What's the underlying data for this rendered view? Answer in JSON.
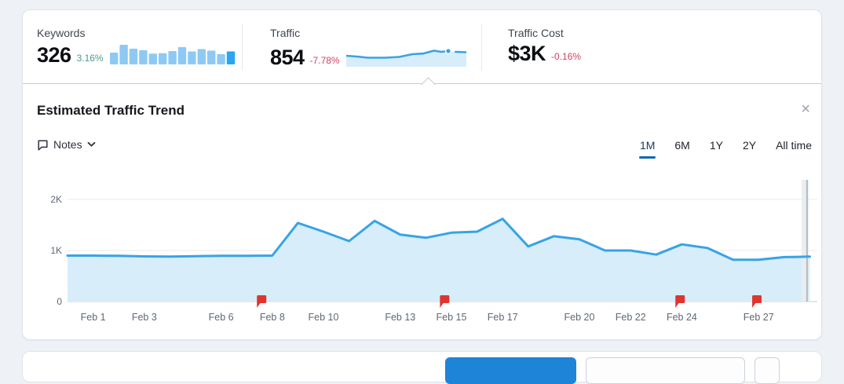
{
  "metrics": {
    "keywords": {
      "label": "Keywords",
      "value": "326",
      "change": "3.16%",
      "change_direction": "up"
    },
    "traffic": {
      "label": "Traffic",
      "value": "854",
      "change": "-7.78%",
      "change_direction": "down"
    },
    "traffic_cost": {
      "label": "Traffic Cost",
      "value": "$3K",
      "change": "-0.16%",
      "change_direction": "down"
    }
  },
  "trend_panel": {
    "title": "Estimated Traffic Trend",
    "notes_label": "Notes",
    "close_icon": "×",
    "range_tabs": [
      {
        "label": "1M",
        "active": true
      },
      {
        "label": "6M",
        "active": false
      },
      {
        "label": "1Y",
        "active": false
      },
      {
        "label": "2Y",
        "active": false
      },
      {
        "label": "All time",
        "active": false
      }
    ]
  },
  "chart_data": [
    {
      "type": "area",
      "name": "estimated-traffic-trend",
      "title": "Estimated Traffic Trend",
      "series": [
        {
          "name": "Traffic",
          "values": [
            900,
            900,
            895,
            885,
            880,
            890,
            895,
            895,
            900,
            1540,
            1370,
            1185,
            1580,
            1310,
            1250,
            1350,
            1370,
            1620,
            1080,
            1280,
            1220,
            1000,
            1000,
            920,
            1120,
            1050,
            820,
            820,
            870,
            880
          ]
        }
      ],
      "x_tick_labels": [
        "Feb 1",
        "Feb 3",
        "Feb 6",
        "Feb 8",
        "Feb 10",
        "Feb 13",
        "Feb 15",
        "Feb 17",
        "Feb 20",
        "Feb 22",
        "Feb 24",
        "Feb 27"
      ],
      "x_tick_point_indices": [
        1,
        3,
        6,
        8,
        10,
        13,
        15,
        17,
        20,
        22,
        24,
        27
      ],
      "y_tick_labels": [
        "0",
        "1K",
        "2K"
      ],
      "y_tick_values": [
        0,
        1000,
        2000
      ],
      "ylim": [
        0,
        2400
      ],
      "grid": "horizontal",
      "legend": "none",
      "note_flags": [
        {
          "label": "Feb 8",
          "point_index": 7.4
        },
        {
          "label": "Feb 15",
          "point_index": 14.55
        },
        {
          "label": "Feb 24",
          "point_index": 23.75
        },
        {
          "label": "Feb 27",
          "point_index": 26.75
        }
      ],
      "right_band_point_index": 28.8
    },
    {
      "type": "bar",
      "name": "keywords-sparkline",
      "values_normalized": [
        0.6,
        1.0,
        0.8,
        0.72,
        0.55,
        0.57,
        0.68,
        0.88,
        0.66,
        0.78,
        0.7,
        0.52,
        0.66
      ],
      "highlight_last": true
    },
    {
      "type": "area",
      "name": "traffic-sparkline",
      "points_normalized": [
        [
          0,
          0.44
        ],
        [
          0.09,
          0.4
        ],
        [
          0.18,
          0.34
        ],
        [
          0.32,
          0.34
        ],
        [
          0.44,
          0.38
        ],
        [
          0.55,
          0.52
        ],
        [
          0.64,
          0.55
        ],
        [
          0.73,
          0.7
        ],
        [
          0.79,
          0.64
        ],
        [
          0.85,
          0.68
        ]
      ],
      "dot_at": [
        0.85,
        0.68
      ],
      "trailing_segment": [
        [
          0.91,
          0.64
        ],
        [
          1,
          0.62
        ]
      ]
    }
  ],
  "bottom_bar": {
    "buttons": [
      {
        "name": "primary-action",
        "style": "blue-filled",
        "label": ""
      },
      {
        "name": "secondary-action",
        "style": "outline",
        "label": ""
      },
      {
        "name": "icon-action",
        "style": "outline",
        "label": ""
      }
    ]
  },
  "colors": {
    "line": "#38a3e6",
    "area": "#d7edfa",
    "bar": "#8ec9f4",
    "bar_active": "#29a5f2",
    "positive": "#4a9c89",
    "negative": "#d04361",
    "tab_underline": "#1268b3",
    "flag": "#e0342f",
    "grid": "#e8ebef",
    "axis": "#c9ced4",
    "axis_text": "#5f6873",
    "band": "#e9ecf0",
    "band_line": "#b3bac2"
  }
}
